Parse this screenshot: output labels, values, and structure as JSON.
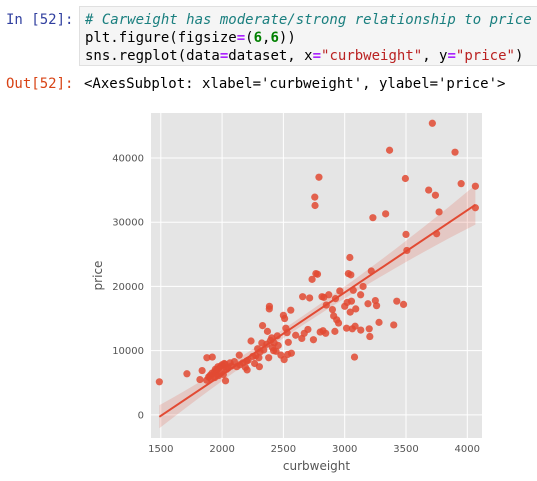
{
  "input_cell": {
    "prompt": "In [52]:",
    "code": {
      "line1_comment": "# Carweight has moderate/strong relationship to price",
      "line2": {
        "a": "plt.figure(figsize",
        "eq": "=",
        "b": "(",
        "n1": "6",
        "c": ",",
        "n2": "6",
        "d": "))"
      },
      "line3": {
        "a": "sns.regplot(data",
        "eq1": "=",
        "b": "dataset, x",
        "eq2": "=",
        "s1": "\"curbweight\"",
        "c": ", y",
        "eq3": "=",
        "s2": "\"price\"",
        "d": ")"
      }
    }
  },
  "output_cell": {
    "prompt": "Out[52]:",
    "text": "<AxesSubplot: xlabel='curbweight', ylabel='price'>"
  },
  "colors": {
    "plot_background": "#e5e5e5",
    "points": "#e24a33",
    "regression_line": "#e24a33",
    "confidence_band": "#e24a33"
  },
  "chart_data": {
    "type": "scatter",
    "xlabel": "curbweight",
    "ylabel": "price",
    "xlim": [
      1420,
      4120
    ],
    "ylim": [
      -3600,
      47000
    ],
    "xticks": [
      1500,
      2000,
      2500,
      3000,
      3500,
      4000
    ],
    "yticks": [
      0,
      10000,
      20000,
      30000,
      40000
    ],
    "grid": true,
    "regression": {
      "x": [
        1488,
        4066
      ],
      "y": [
        -300,
        32700
      ]
    },
    "points": [
      [
        1488,
        5150
      ],
      [
        1713,
        6400
      ],
      [
        1819,
        5500
      ],
      [
        1837,
        6900
      ],
      [
        1874,
        5400
      ],
      [
        1876,
        8900
      ],
      [
        1890,
        5900
      ],
      [
        1900,
        6000
      ],
      [
        1905,
        6200
      ],
      [
        1909,
        5600
      ],
      [
        1918,
        6500
      ],
      [
        1920,
        9000
      ],
      [
        1938,
        6700
      ],
      [
        1940,
        5800
      ],
      [
        1945,
        7100
      ],
      [
        1950,
        6300
      ],
      [
        1955,
        6900
      ],
      [
        1956,
        7000
      ],
      [
        1967,
        7500
      ],
      [
        1970,
        6100
      ],
      [
        1971,
        7200
      ],
      [
        1989,
        6500
      ],
      [
        1990,
        7600
      ],
      [
        2000,
        7800
      ],
      [
        2010,
        6300
      ],
      [
        2015,
        7400
      ],
      [
        2017,
        8000
      ],
      [
        2024,
        7900
      ],
      [
        2028,
        5300
      ],
      [
        2037,
        7100
      ],
      [
        2050,
        7300
      ],
      [
        2065,
        8100
      ],
      [
        2075,
        7600
      ],
      [
        2100,
        8300
      ],
      [
        2120,
        7500
      ],
      [
        2140,
        9300
      ],
      [
        2145,
        7800
      ],
      [
        2170,
        8100
      ],
      [
        2190,
        7400
      ],
      [
        2200,
        8400
      ],
      [
        2204,
        7000
      ],
      [
        2212,
        8500
      ],
      [
        2236,
        11500
      ],
      [
        2250,
        9100
      ],
      [
        2265,
        8000
      ],
      [
        2275,
        9200
      ],
      [
        2290,
        10300
      ],
      [
        2300,
        8900
      ],
      [
        2304,
        7500
      ],
      [
        2310,
        9800
      ],
      [
        2324,
        11200
      ],
      [
        2330,
        13900
      ],
      [
        2340,
        10100
      ],
      [
        2365,
        11000
      ],
      [
        2370,
        13000
      ],
      [
        2380,
        8900
      ],
      [
        2385,
        16500
      ],
      [
        2386,
        16900
      ],
      [
        2395,
        11600
      ],
      [
        2405,
        12000
      ],
      [
        2410,
        10500
      ],
      [
        2420,
        10000
      ],
      [
        2425,
        11200
      ],
      [
        2440,
        9900
      ],
      [
        2450,
        12300
      ],
      [
        2458,
        10800
      ],
      [
        2480,
        9300
      ],
      [
        2500,
        15500
      ],
      [
        2506,
        8600
      ],
      [
        2510,
        15000
      ],
      [
        2520,
        13500
      ],
      [
        2530,
        12800
      ],
      [
        2535,
        9400
      ],
      [
        2540,
        11300
      ],
      [
        2560,
        16300
      ],
      [
        2565,
        9600
      ],
      [
        2600,
        12400
      ],
      [
        2650,
        11900
      ],
      [
        2657,
        18400
      ],
      [
        2670,
        12700
      ],
      [
        2700,
        13300
      ],
      [
        2714,
        18200
      ],
      [
        2734,
        21100
      ],
      [
        2745,
        11700
      ],
      [
        2756,
        33900
      ],
      [
        2758,
        32600
      ],
      [
        2765,
        22000
      ],
      [
        2778,
        21900
      ],
      [
        2790,
        37000
      ],
      [
        2800,
        12900
      ],
      [
        2815,
        18400
      ],
      [
        2823,
        13100
      ],
      [
        2830,
        18300
      ],
      [
        2845,
        12700
      ],
      [
        2850,
        17100
      ],
      [
        2870,
        18700
      ],
      [
        2900,
        16400
      ],
      [
        2910,
        15400
      ],
      [
        2920,
        13000
      ],
      [
        2925,
        18100
      ],
      [
        2935,
        14800
      ],
      [
        2950,
        14300
      ],
      [
        2960,
        19300
      ],
      [
        3000,
        16900
      ],
      [
        3015,
        13500
      ],
      [
        3020,
        17500
      ],
      [
        3030,
        22000
      ],
      [
        3042,
        24500
      ],
      [
        3045,
        16000
      ],
      [
        3050,
        21800
      ],
      [
        3055,
        17700
      ],
      [
        3062,
        13400
      ],
      [
        3070,
        19400
      ],
      [
        3080,
        9000
      ],
      [
        3085,
        13800
      ],
      [
        3090,
        16500
      ],
      [
        3131,
        13200
      ],
      [
        3130,
        18700
      ],
      [
        3150,
        20000
      ],
      [
        3190,
        17300
      ],
      [
        3200,
        13400
      ],
      [
        3205,
        12200
      ],
      [
        3217,
        22400
      ],
      [
        3230,
        30700
      ],
      [
        3250,
        17800
      ],
      [
        3260,
        17000
      ],
      [
        3280,
        14400
      ],
      [
        3334,
        31300
      ],
      [
        3366,
        41200
      ],
      [
        3400,
        14000
      ],
      [
        3425,
        17700
      ],
      [
        3480,
        17200
      ],
      [
        3495,
        36800
      ],
      [
        3500,
        28100
      ],
      [
        3507,
        25600
      ],
      [
        3685,
        35000
      ],
      [
        3715,
        45400
      ],
      [
        3740,
        34200
      ],
      [
        3750,
        28200
      ],
      [
        3770,
        31600
      ],
      [
        3900,
        40900
      ],
      [
        3950,
        36000
      ],
      [
        4066,
        35600
      ],
      [
        4066,
        32250
      ]
    ]
  }
}
